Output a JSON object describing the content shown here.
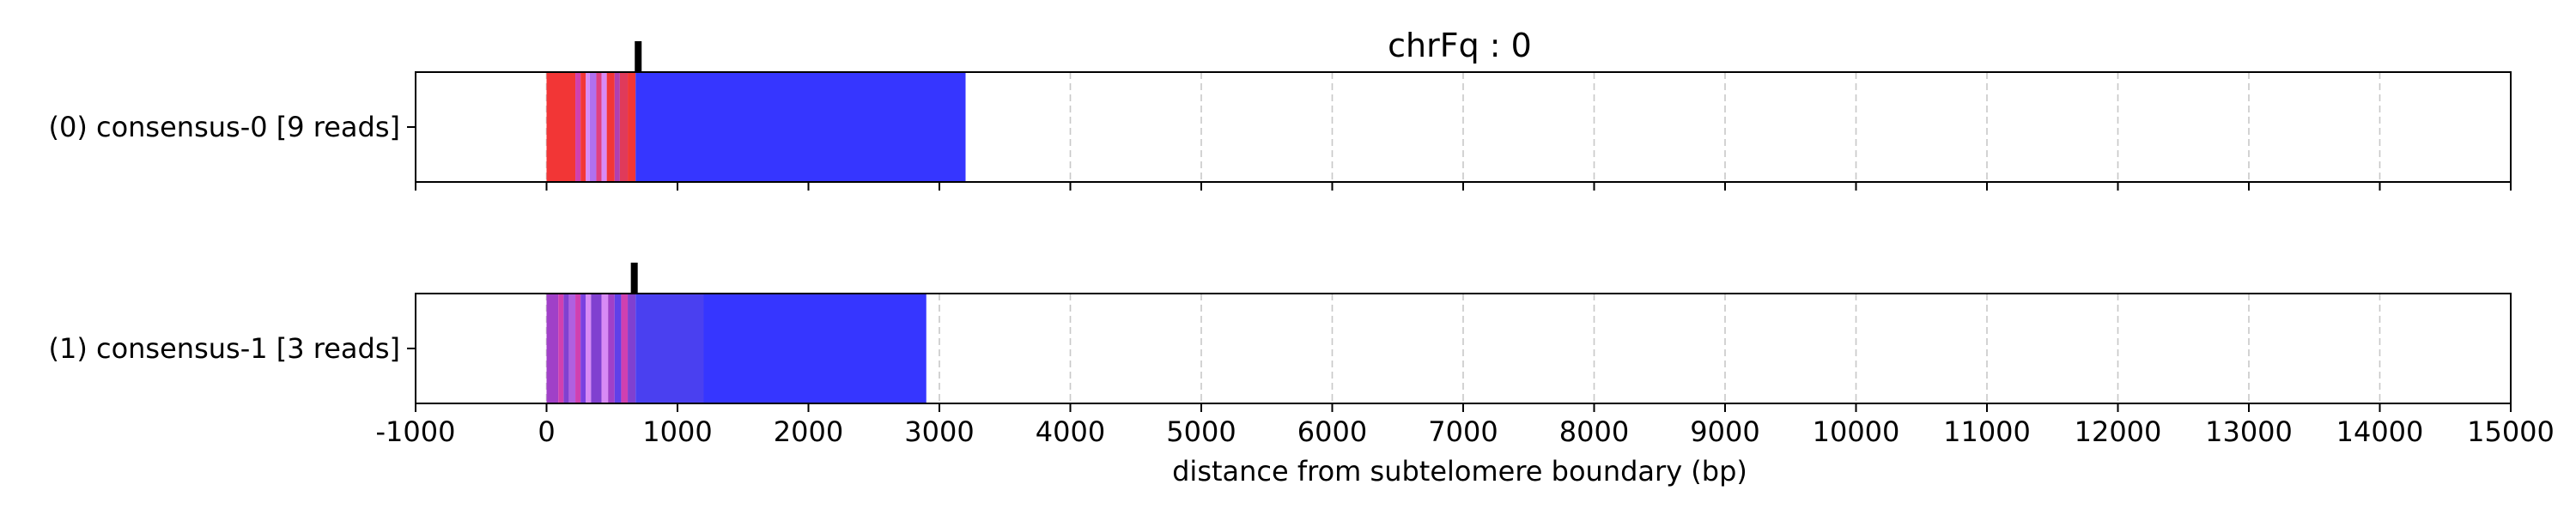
{
  "chart_data": {
    "type": "heatmap",
    "title": "chrFq : 0",
    "xlabel": "distance from subtelomere boundary (bp)",
    "ylabel": "",
    "xlim": [
      -1000,
      15000
    ],
    "x_ticks": [
      -1000,
      0,
      1000,
      2000,
      3000,
      4000,
      5000,
      6000,
      7000,
      8000,
      9000,
      10000,
      11000,
      12000,
      13000,
      14000,
      15000
    ],
    "grid": "vertical dashed",
    "colors": {
      "blue": "#3636ff",
      "red": "#f23636",
      "pink": "#d88af5",
      "purple": "#a040c8",
      "marker": "#000000",
      "grid": "#c8c8c8"
    },
    "tracks": [
      {
        "label": "(0) consensus-0 [9 reads]",
        "marker": 700,
        "segments": [
          {
            "start": 0,
            "end": 220,
            "color": "#f23636"
          },
          {
            "start": 220,
            "end": 260,
            "color": "#d040b0"
          },
          {
            "start": 260,
            "end": 300,
            "color": "#f23636"
          },
          {
            "start": 300,
            "end": 330,
            "color": "#d88af5"
          },
          {
            "start": 330,
            "end": 380,
            "color": "#b070f0"
          },
          {
            "start": 380,
            "end": 420,
            "color": "#e04080"
          },
          {
            "start": 420,
            "end": 460,
            "color": "#d88af5"
          },
          {
            "start": 460,
            "end": 520,
            "color": "#f23636"
          },
          {
            "start": 520,
            "end": 560,
            "color": "#b040b0"
          },
          {
            "start": 560,
            "end": 620,
            "color": "#e03a5a"
          },
          {
            "start": 620,
            "end": 680,
            "color": "#f23636"
          },
          {
            "start": 680,
            "end": 3200,
            "color": "#3636ff"
          }
        ]
      },
      {
        "label": "(1) consensus-1 [3 reads]",
        "marker": 670,
        "segments": [
          {
            "start": 0,
            "end": 90,
            "color": "#a040c8"
          },
          {
            "start": 90,
            "end": 130,
            "color": "#d040b0"
          },
          {
            "start": 130,
            "end": 170,
            "color": "#8040d0"
          },
          {
            "start": 170,
            "end": 220,
            "color": "#b060e0"
          },
          {
            "start": 220,
            "end": 260,
            "color": "#d040b0"
          },
          {
            "start": 260,
            "end": 300,
            "color": "#7a40e0"
          },
          {
            "start": 300,
            "end": 340,
            "color": "#d88af5"
          },
          {
            "start": 340,
            "end": 420,
            "color": "#8040d0"
          },
          {
            "start": 420,
            "end": 470,
            "color": "#d88af5"
          },
          {
            "start": 470,
            "end": 520,
            "color": "#a040c8"
          },
          {
            "start": 520,
            "end": 570,
            "color": "#6040e8"
          },
          {
            "start": 570,
            "end": 620,
            "color": "#d040b0"
          },
          {
            "start": 620,
            "end": 680,
            "color": "#8040d0"
          },
          {
            "start": 680,
            "end": 1200,
            "color": "#4a40f0"
          },
          {
            "start": 1200,
            "end": 2900,
            "color": "#3636ff"
          }
        ]
      }
    ]
  }
}
